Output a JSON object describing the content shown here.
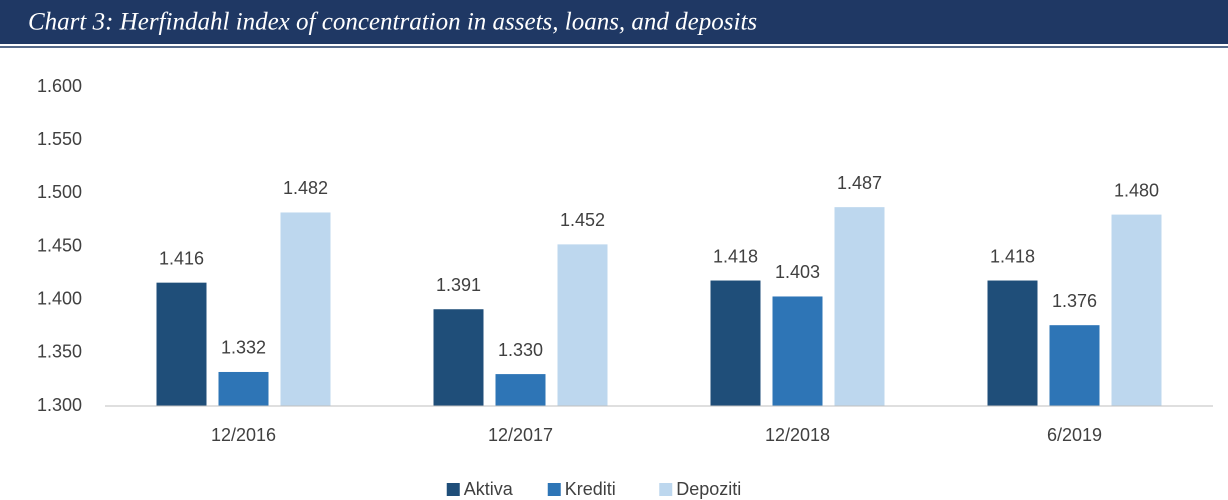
{
  "chart_data": {
    "type": "bar",
    "title": "Chart 3: Herfindahl index of concentration in assets, loans, and deposits",
    "categories": [
      "12/2016",
      "12/2017",
      "12/2018",
      "6/2019"
    ],
    "series": [
      {
        "name": "Aktiva",
        "color": "#1f4e79",
        "values": [
          1.416,
          1.391,
          1.418,
          1.418
        ],
        "value_labels": [
          "1.416",
          "1.391",
          "1.418",
          "1.418"
        ]
      },
      {
        "name": "Krediti",
        "color": "#2e75b6",
        "values": [
          1.332,
          1.33,
          1.403,
          1.376
        ],
        "value_labels": [
          "1.332",
          "1.330",
          "1.403",
          "1.376"
        ]
      },
      {
        "name": "Depoziti",
        "color": "#bdd7ee",
        "values": [
          1.482,
          1.452,
          1.487,
          1.48
        ],
        "value_labels": [
          "1.482",
          "1.452",
          "1.487",
          "1.480"
        ]
      }
    ],
    "ylim": [
      1.3,
      1.6
    ],
    "yticks": [
      {
        "value": 1.3,
        "label": "1.300"
      },
      {
        "value": 1.35,
        "label": "1.350"
      },
      {
        "value": 1.4,
        "label": "1.400"
      },
      {
        "value": 1.45,
        "label": "1.450"
      },
      {
        "value": 1.5,
        "label": "1.500"
      },
      {
        "value": 1.55,
        "label": "1.550"
      },
      {
        "value": 1.6,
        "label": "1.600"
      }
    ],
    "grid": false,
    "legend": "bottom"
  }
}
